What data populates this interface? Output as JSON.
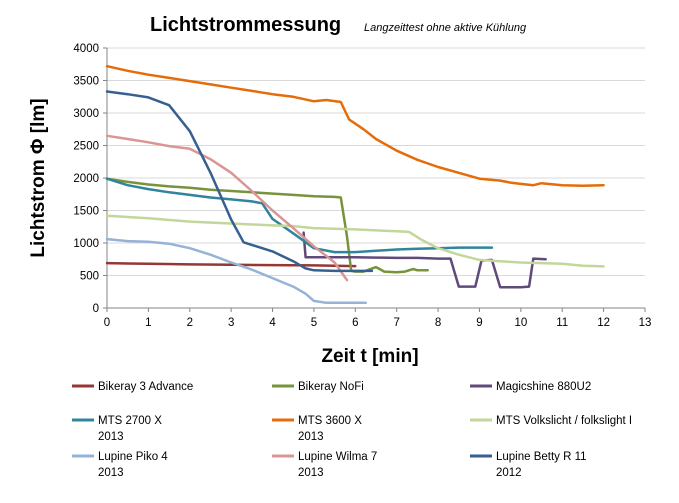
{
  "chart_data": {
    "type": "line",
    "title": "Lichtstrommessung",
    "subtitle": "Langzeittest ohne aktive Kühlung",
    "xlabel": "Zeit t [min]",
    "ylabel": "Lichtstrom Φ [lm]",
    "xlim": [
      0,
      13
    ],
    "ylim": [
      0,
      4000
    ],
    "xticks": [
      "0",
      "1",
      "2",
      "3",
      "4",
      "5",
      "6",
      "7",
      "8",
      "9",
      "10",
      "11",
      "12",
      "13"
    ],
    "yticks": [
      "0",
      "500",
      "1000",
      "1500",
      "2000",
      "2500",
      "3000",
      "3500",
      "4000"
    ],
    "grid": "horizontal",
    "legend_position": "bottom",
    "series": [
      {
        "name": "Bikeray 3 Advance",
        "name_line2": "",
        "color": "#953735",
        "points": [
          [
            0,
            690
          ],
          [
            1,
            680
          ],
          [
            2,
            670
          ],
          [
            3,
            665
          ],
          [
            4,
            660
          ],
          [
            5,
            655
          ],
          [
            5.5,
            650
          ],
          [
            6,
            645
          ]
        ]
      },
      {
        "name": "Bikeray NoFi",
        "name_line2": "",
        "color": "#77933c",
        "points": [
          [
            0,
            1990
          ],
          [
            0.5,
            1940
          ],
          [
            1,
            1900
          ],
          [
            1.5,
            1870
          ],
          [
            2,
            1850
          ],
          [
            2.5,
            1820
          ],
          [
            3,
            1800
          ],
          [
            3.5,
            1780
          ],
          [
            4,
            1760
          ],
          [
            4.5,
            1740
          ],
          [
            5,
            1720
          ],
          [
            5.5,
            1710
          ],
          [
            5.65,
            1700
          ],
          [
            5.8,
            1100
          ],
          [
            5.9,
            570
          ],
          [
            6,
            560
          ],
          [
            6.2,
            560
          ],
          [
            6.5,
            630
          ],
          [
            6.7,
            560
          ],
          [
            7,
            550
          ],
          [
            7.2,
            560
          ],
          [
            7.4,
            600
          ],
          [
            7.5,
            580
          ],
          [
            7.75,
            580
          ]
        ]
      },
      {
        "name": "Magicshine 880U2",
        "name_line2": "",
        "color": "#604a7b",
        "points": [
          [
            4.75,
            1160
          ],
          [
            4.8,
            780
          ],
          [
            5,
            780
          ],
          [
            5.5,
            780
          ],
          [
            6,
            780
          ],
          [
            6.5,
            775
          ],
          [
            7,
            770
          ],
          [
            7.5,
            770
          ],
          [
            8,
            760
          ],
          [
            8.3,
            760
          ],
          [
            8.5,
            330
          ],
          [
            8.7,
            330
          ],
          [
            8.9,
            330
          ],
          [
            9.05,
            730
          ],
          [
            9.3,
            740
          ],
          [
            9.5,
            320
          ],
          [
            9.75,
            320
          ],
          [
            10,
            320
          ],
          [
            10.2,
            330
          ],
          [
            10.3,
            760
          ],
          [
            10.6,
            750
          ]
        ]
      },
      {
        "name": "MTS 2700 X",
        "name_line2": "2013",
        "color": "#31849b",
        "points": [
          [
            0,
            1990
          ],
          [
            0.5,
            1890
          ],
          [
            1,
            1830
          ],
          [
            1.5,
            1780
          ],
          [
            2,
            1740
          ],
          [
            2.5,
            1700
          ],
          [
            3,
            1670
          ],
          [
            3.5,
            1640
          ],
          [
            3.75,
            1610
          ],
          [
            4,
            1370
          ],
          [
            4.5,
            1150
          ],
          [
            5,
            920
          ],
          [
            5.5,
            860
          ],
          [
            6,
            860
          ],
          [
            6.5,
            880
          ],
          [
            7,
            900
          ],
          [
            7.5,
            910
          ],
          [
            8,
            920
          ],
          [
            8.5,
            930
          ],
          [
            9,
            930
          ],
          [
            9.3,
            930
          ]
        ]
      },
      {
        "name": "MTS 3600 X",
        "name_line2": "2013",
        "color": "#e46c0a",
        "points": [
          [
            0,
            3720
          ],
          [
            0.5,
            3650
          ],
          [
            1,
            3590
          ],
          [
            1.5,
            3540
          ],
          [
            2,
            3490
          ],
          [
            2.5,
            3440
          ],
          [
            3,
            3390
          ],
          [
            3.5,
            3340
          ],
          [
            4,
            3290
          ],
          [
            4.5,
            3250
          ],
          [
            5,
            3180
          ],
          [
            5.3,
            3200
          ],
          [
            5.65,
            3170
          ],
          [
            5.85,
            2900
          ],
          [
            6.2,
            2750
          ],
          [
            6.5,
            2600
          ],
          [
            7,
            2420
          ],
          [
            7.5,
            2280
          ],
          [
            8,
            2170
          ],
          [
            8.5,
            2080
          ],
          [
            9,
            1990
          ],
          [
            9.5,
            1960
          ],
          [
            9.75,
            1930
          ],
          [
            10,
            1910
          ],
          [
            10.3,
            1890
          ],
          [
            10.5,
            1920
          ],
          [
            11,
            1890
          ],
          [
            11.5,
            1880
          ],
          [
            12,
            1890
          ]
        ]
      },
      {
        "name": "MTS Volkslicht / folkslight I",
        "name_line2": "",
        "color": "#c3d69b",
        "points": [
          [
            0,
            1420
          ],
          [
            1,
            1380
          ],
          [
            2,
            1330
          ],
          [
            3,
            1300
          ],
          [
            4,
            1270
          ],
          [
            4.5,
            1260
          ],
          [
            5,
            1230
          ],
          [
            6,
            1210
          ],
          [
            7,
            1180
          ],
          [
            7.3,
            1170
          ],
          [
            7.6,
            1050
          ],
          [
            8,
            920
          ],
          [
            8.5,
            820
          ],
          [
            9,
            740
          ],
          [
            9.5,
            720
          ],
          [
            10,
            700
          ],
          [
            11,
            680
          ],
          [
            11.5,
            650
          ],
          [
            12,
            640
          ]
        ]
      },
      {
        "name": "Lupine Piko 4",
        "name_line2": "2013",
        "color": "#95b3d7",
        "points": [
          [
            0,
            1060
          ],
          [
            0.5,
            1030
          ],
          [
            1,
            1020
          ],
          [
            1.5,
            990
          ],
          [
            2,
            920
          ],
          [
            2.5,
            820
          ],
          [
            3,
            700
          ],
          [
            3.5,
            590
          ],
          [
            4,
            460
          ],
          [
            4.5,
            330
          ],
          [
            4.8,
            220
          ],
          [
            5,
            110
          ],
          [
            5.3,
            80
          ],
          [
            5.8,
            80
          ],
          [
            6.25,
            80
          ]
        ]
      },
      {
        "name": "Lupine Wilma 7",
        "name_line2": "2013",
        "color": "#d99694",
        "points": [
          [
            0,
            2650
          ],
          [
            0.5,
            2600
          ],
          [
            1,
            2550
          ],
          [
            1.5,
            2490
          ],
          [
            2,
            2450
          ],
          [
            2.5,
            2290
          ],
          [
            3,
            2080
          ],
          [
            3.5,
            1800
          ],
          [
            4,
            1500
          ],
          [
            4.5,
            1230
          ],
          [
            5,
            950
          ],
          [
            5.5,
            700
          ],
          [
            5.8,
            430
          ]
        ]
      },
      {
        "name": "Lupine Betty R 11",
        "name_line2": "2012",
        "color": "#376092",
        "points": [
          [
            0,
            3330
          ],
          [
            0.5,
            3290
          ],
          [
            1,
            3240
          ],
          [
            1.5,
            3120
          ],
          [
            2,
            2720
          ],
          [
            2.5,
            2080
          ],
          [
            3,
            1360
          ],
          [
            3.3,
            1010
          ],
          [
            3.5,
            970
          ],
          [
            4,
            870
          ],
          [
            4.5,
            720
          ],
          [
            4.8,
            610
          ],
          [
            5,
            580
          ],
          [
            5.5,
            570
          ],
          [
            6,
            570
          ],
          [
            6.4,
            570
          ]
        ]
      }
    ]
  }
}
